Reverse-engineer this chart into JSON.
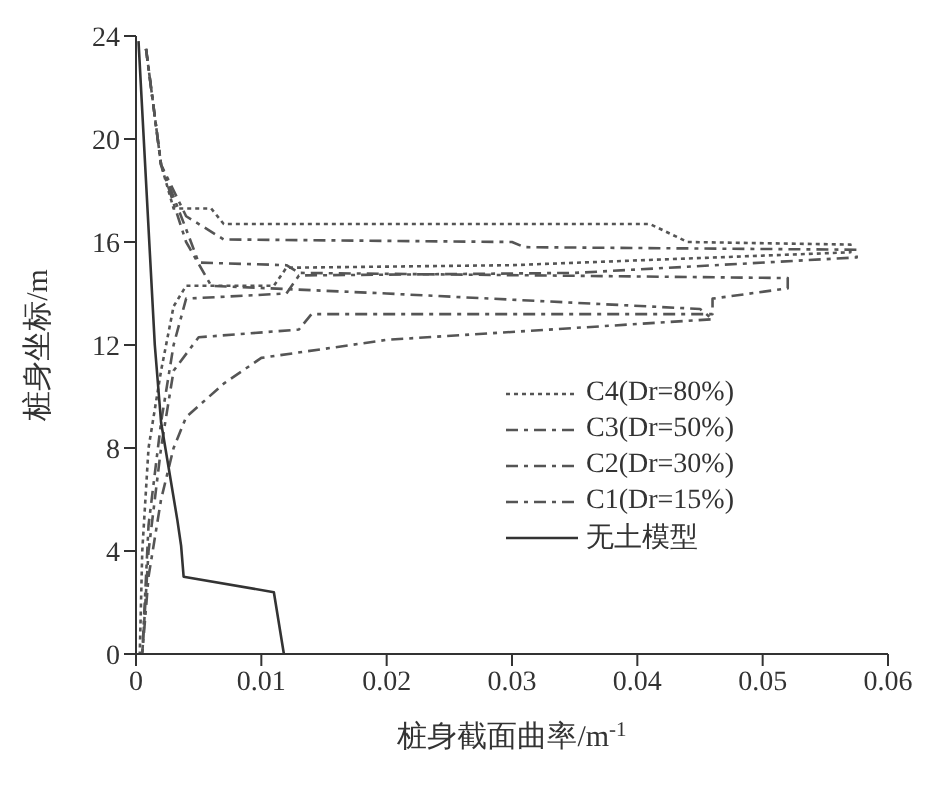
{
  "chart_data": {
    "type": "line",
    "xlabel": "桩身截面曲率/m$^{-1}$",
    "ylabel": "桩身坐标/m",
    "xlim": [
      0,
      0.06
    ],
    "xticks": [
      0,
      0.01,
      0.02,
      0.03,
      0.04,
      0.05,
      0.06
    ],
    "ylim": [
      0,
      24
    ],
    "yticks": [
      0,
      4,
      8,
      12,
      16,
      20,
      24
    ],
    "grid": false,
    "legend": "right",
    "marker": "none",
    "series": [
      {
        "name": "C4(Dr=80%)",
        "color": "#555555",
        "line_style": "dotted",
        "x": [
          0.0008,
          0.002,
          0.003,
          0.006,
          0.007,
          0.041,
          0.044,
          0.057,
          0.057,
          0.03,
          0.012,
          0.011,
          0.004,
          0.003,
          0.002,
          0.001,
          0.0005,
          0.0003
        ],
        "values": [
          23.5,
          19,
          17.3,
          17.3,
          16.7,
          16.7,
          16.0,
          15.9,
          15.6,
          15.1,
          15.0,
          14.3,
          14.3,
          13.5,
          11,
          8,
          4,
          0
        ]
      },
      {
        "name": "C3(Dr=50%)",
        "color": "#555555",
        "line_style": "dashed",
        "x": [
          0.0008,
          0.002,
          0.004,
          0.007,
          0.03,
          0.031,
          0.0575,
          0.0575,
          0.035,
          0.013,
          0.012,
          0.004,
          0.003,
          0.002,
          0.001,
          0.0005
        ],
        "values": [
          23.5,
          19,
          17,
          16.1,
          16.0,
          15.8,
          15.7,
          15.4,
          14.8,
          14.7,
          14.0,
          13.8,
          12,
          9,
          5,
          0
        ]
      },
      {
        "name": "C2(Dr=30%)",
        "color": "#555555",
        "line_style": "dashed",
        "x": [
          0.0008,
          0.002,
          0.004,
          0.005,
          0.012,
          0.013,
          0.052,
          0.052,
          0.046,
          0.046,
          0.014,
          0.013,
          0.005,
          0.003,
          0.002,
          0.001,
          0.0005
        ],
        "values": [
          23.5,
          19,
          16.5,
          15.2,
          15.1,
          14.8,
          14.6,
          14.2,
          13.8,
          13.2,
          13.2,
          12.6,
          12.3,
          11,
          8,
          4,
          0
        ]
      },
      {
        "name": "C1(Dr=15%)",
        "color": "#555555",
        "line_style": "dashed",
        "x": [
          0.0008,
          0.002,
          0.004,
          0.006,
          0.02,
          0.045,
          0.046,
          0.02,
          0.01,
          0.007,
          0.004,
          0.003,
          0.002,
          0.001,
          0.0005
        ],
        "values": [
          23.5,
          19,
          16,
          14.3,
          14.0,
          13.4,
          13.0,
          12.2,
          11.5,
          10.5,
          9.2,
          8,
          6,
          3,
          0
        ]
      },
      {
        "name": "无土模型",
        "color": "#333333",
        "line_style": "solid",
        "x": [
          0.0002,
          0.0015,
          0.002,
          0.0033,
          0.0036,
          0.0038,
          0.011,
          0.0118
        ],
        "values": [
          23.8,
          12,
          9,
          5.2,
          4.2,
          3.0,
          2.4,
          0
        ]
      }
    ]
  }
}
